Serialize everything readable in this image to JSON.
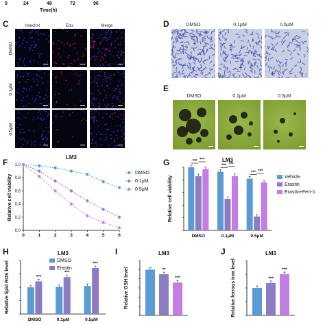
{
  "top_axis": {
    "ticks": [
      "0",
      "24",
      "48",
      "72",
      "96"
    ],
    "label": "Time(h)"
  },
  "panel_c": {
    "label": "C",
    "columns": [
      "Hoechst",
      "Edu",
      "Merge"
    ],
    "rows": [
      "DMSO",
      "0.1μM",
      "0.5μM"
    ],
    "colors": {
      "hoechst": "#2233cc",
      "edu": "#cc1122",
      "bg": "#050512"
    }
  },
  "panel_d": {
    "label": "D",
    "columns": [
      "DMSO",
      "0.1μM",
      "0.5μM"
    ],
    "colors": {
      "bg": "#c8cfe4",
      "stain": "#3a44a8"
    }
  },
  "panel_e": {
    "label": "E",
    "columns": [
      "DMSO",
      "0.1μM",
      "0.5μM"
    ],
    "colors": {
      "bg": "#7a9a30",
      "sphere": "#1a1a12"
    }
  },
  "chart_data": [
    {
      "panel": "F",
      "type": "line",
      "title": "LM3",
      "xlabel": "",
      "ylabel": "Relative cell viability",
      "x": [
        0,
        1,
        2,
        3,
        4,
        5,
        6
      ],
      "xlim": [
        0,
        6
      ],
      "ylim": [
        0,
        1.0
      ],
      "yticks": [
        "0.0",
        "0.2",
        "0.4",
        "0.6",
        "0.8",
        "1.0"
      ],
      "legend_position": "right",
      "series": [
        {
          "name": "DMSO",
          "color": "#5b9bd5",
          "values": [
            1.0,
            0.98,
            0.95,
            0.9,
            0.85,
            0.74,
            0.65
          ]
        },
        {
          "name": "0.1μM",
          "color": "#8e7cc3",
          "values": [
            1.0,
            0.9,
            0.75,
            0.6,
            0.45,
            0.32,
            0.2
          ]
        },
        {
          "name": "0.5μM",
          "color": "#c27ee3",
          "values": [
            1.0,
            0.82,
            0.6,
            0.4,
            0.22,
            0.12,
            0.04
          ]
        }
      ]
    },
    {
      "panel": "G",
      "type": "bar",
      "title": "LM3",
      "ylabel": "Relative cell viability",
      "categories": [
        "DMSO",
        "0.1μM",
        "0.5μM"
      ],
      "ylim": [
        0,
        1.0
      ],
      "legend_position": "right",
      "series": [
        {
          "name": "Vehicle",
          "color": "#5b9bd5",
          "values": [
            1.0,
            0.93,
            0.82
          ]
        },
        {
          "name": "Erastin",
          "color": "#8e7cc3",
          "values": [
            0.86,
            0.5,
            0.22
          ]
        },
        {
          "name": "Erastin+Ferr-1",
          "color": "#c27ee3",
          "values": [
            0.97,
            0.86,
            0.76
          ]
        }
      ],
      "significance": [
        "***",
        "***",
        "***",
        "***",
        "***",
        "***"
      ]
    },
    {
      "panel": "H",
      "type": "bar",
      "title": "LM3",
      "ylabel": "Relative lipid ROS level",
      "categories": [
        "DMSO",
        "0.1μM",
        "0.5μM"
      ],
      "ylim": [
        0,
        2.0
      ],
      "legend_position": "top-left",
      "series": [
        {
          "name": "DMSO",
          "color": "#5b9bd5",
          "values": [
            1.0,
            1.02,
            1.05
          ]
        },
        {
          "name": "Erastin",
          "color": "#8e7cc3",
          "values": [
            1.22,
            1.38,
            1.72
          ]
        }
      ],
      "significance": [
        "***",
        "***",
        "***"
      ]
    },
    {
      "panel": "I",
      "type": "bar",
      "title": "LM3",
      "ylabel": "Relative GSH level",
      "ylim": [
        0,
        1.2
      ],
      "series": [
        {
          "color": "#5b9bd5",
          "values": [
            1.0
          ]
        },
        {
          "color": "#8e7cc3",
          "values": [
            0.9
          ]
        },
        {
          "color": "#c27ee3",
          "values": [
            0.72
          ]
        }
      ],
      "significance": [
        "",
        "**",
        "***"
      ]
    },
    {
      "panel": "J",
      "type": "bar",
      "title": "LM3",
      "ylabel": "Relative ferrous iron level",
      "ylim": [
        0,
        2.0
      ],
      "series": [
        {
          "color": "#5b9bd5",
          "values": [
            1.0
          ]
        },
        {
          "color": "#8e7cc3",
          "values": [
            1.18
          ]
        },
        {
          "color": "#c27ee3",
          "values": [
            1.5
          ]
        }
      ],
      "significance": [
        "",
        "***",
        "***"
      ]
    }
  ],
  "labels": {
    "F": "F",
    "G": "G",
    "H": "H",
    "I": "I",
    "J": "J"
  }
}
